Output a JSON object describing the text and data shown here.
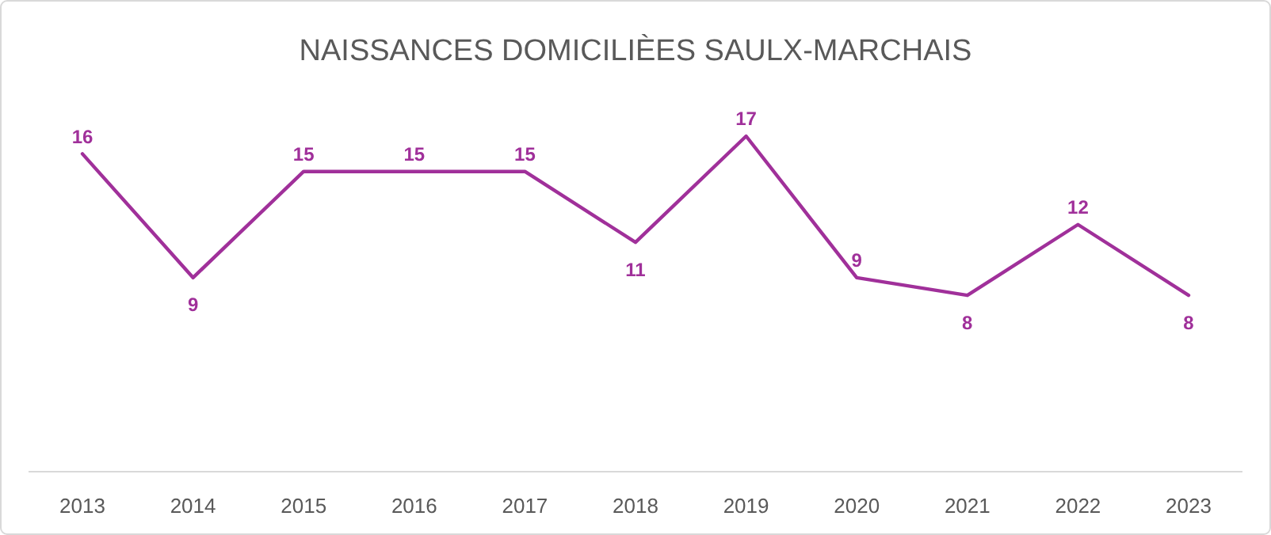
{
  "chart_data": {
    "type": "line",
    "title": "NAISSANCES DOMICILIÈES SAULX-MARCHAIS",
    "categories": [
      "2013",
      "2014",
      "2015",
      "2016",
      "2017",
      "2018",
      "2019",
      "2020",
      "2021",
      "2022",
      "2023"
    ],
    "series": [
      {
        "color": "#a0309a",
        "values": [
          16,
          9,
          15,
          15,
          15,
          11,
          17,
          9,
          8,
          12,
          8
        ]
      }
    ],
    "data_labels": true,
    "marker": "none"
  }
}
